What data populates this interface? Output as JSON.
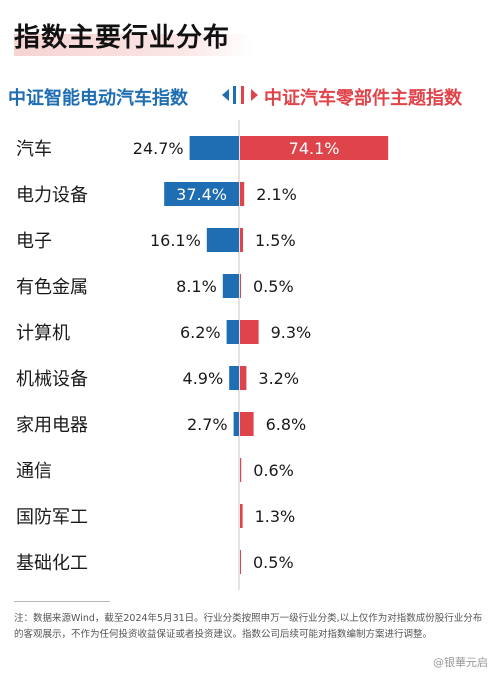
{
  "title": "指数主要行业分布",
  "legend": {
    "left": "中证智能电动汽车指数",
    "right": "中证汽车零部件主题指数"
  },
  "colors": {
    "left": "#1f6db3",
    "right": "#e0444b"
  },
  "chart_data": {
    "type": "bar",
    "orientation": "horizontal-diverging",
    "categories": [
      "汽车",
      "电力设备",
      "电子",
      "有色金属",
      "计算机",
      "机械设备",
      "家用电器",
      "通信",
      "国防军工",
      "基础化工"
    ],
    "series": [
      {
        "name": "中证智能电动汽车指数",
        "side": "left",
        "values": [
          24.7,
          37.4,
          16.1,
          8.1,
          6.2,
          4.9,
          2.7,
          null,
          null,
          null
        ],
        "labels": [
          "24.7%",
          "37.4%",
          "16.1%",
          "8.1%",
          "6.2%",
          "4.9%",
          "2.7%",
          "",
          "",
          ""
        ]
      },
      {
        "name": "中证汽车零部件主题指数",
        "side": "right",
        "values": [
          74.1,
          2.1,
          1.5,
          0.5,
          9.3,
          3.2,
          6.8,
          0.6,
          1.3,
          0.5
        ],
        "labels": [
          "74.1%",
          "2.1%",
          "1.5%",
          "0.5%",
          "9.3%",
          "3.2%",
          "6.8%",
          "0.6%",
          "1.3%",
          "0.5%"
        ]
      }
    ],
    "unit": "%"
  },
  "note": "注：数据来源Wind，截至2024年5月31日。行业分类按照申万一级行业分类,以上仅作为对指数成份股行业分布的客观展示，不作为任何投资收益保证或者投资建议。指数公司后续可能对指数编制方案进行调整。",
  "watermark": "@银華元启"
}
